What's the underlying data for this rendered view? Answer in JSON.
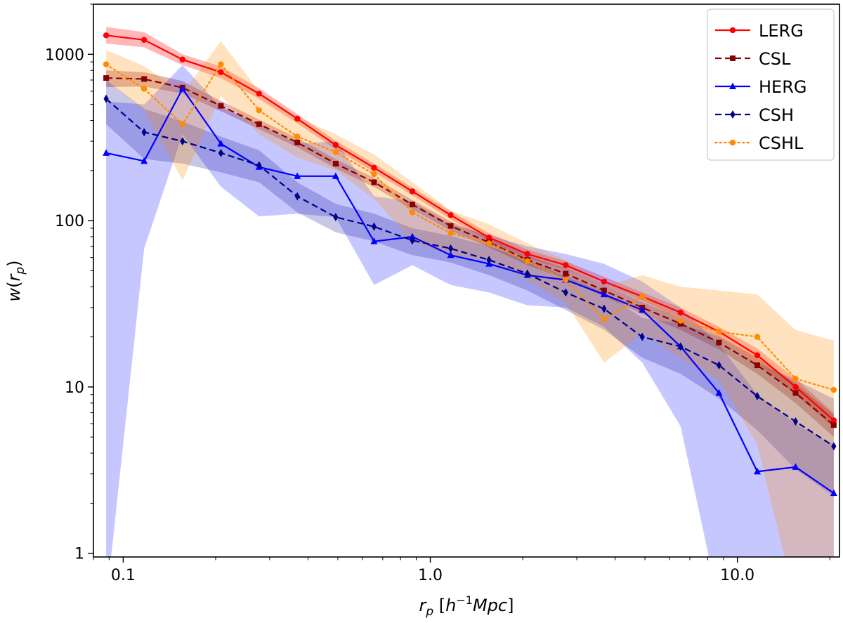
{
  "chart_data": {
    "type": "line",
    "xscale": "log",
    "yscale": "log",
    "xlim": [
      0.08,
      21.5
    ],
    "ylim": [
      0.95,
      2000
    ],
    "xlabel": "r_p [h^{-1}Mpc]",
    "ylabel": "w(r_p)",
    "x_ticks": [
      0.1,
      1.0,
      10.0
    ],
    "x_tick_labels": [
      "0.1",
      "1.0",
      "10.0"
    ],
    "y_ticks": [
      1,
      10,
      100,
      1000
    ],
    "y_tick_labels": [
      "1",
      "10",
      "100",
      "1000"
    ],
    "grid": false,
    "legend_position": "top-right",
    "x": [
      0.088,
      0.117,
      0.156,
      0.208,
      0.277,
      0.369,
      0.492,
      0.656,
      0.874,
      1.165,
      1.553,
      2.07,
      2.76,
      3.68,
      4.9,
      6.53,
      8.71,
      11.61,
      15.47,
      20.6
    ],
    "series": [
      {
        "name": "LERG",
        "color": "#ff0000",
        "linestyle": "solid",
        "marker": "circle",
        "band_opacity": 0.28,
        "values": [
          1300,
          1220,
          930,
          780,
          580,
          410,
          285,
          208,
          150,
          108,
          79,
          63,
          54,
          43,
          35,
          28,
          21.5,
          15.5,
          10,
          6.3
        ],
        "band_lower": [
          1160,
          1100,
          860,
          720,
          540,
          385,
          268,
          196,
          142,
          102,
          75,
          59,
          51,
          41,
          33,
          26,
          20,
          14,
          9,
          5.7
        ],
        "band_upper": [
          1460,
          1360,
          1000,
          845,
          625,
          437,
          302,
          220,
          158,
          114,
          84,
          67,
          57,
          46,
          37,
          30,
          23,
          17,
          11.2,
          7
        ]
      },
      {
        "name": "CSL",
        "color": "#8b0000",
        "linestyle": "dashed",
        "marker": "square",
        "band_opacity": 0.28,
        "values": [
          720,
          710,
          630,
          490,
          380,
          295,
          220,
          170,
          125,
          93,
          74,
          58,
          48,
          38,
          30,
          24,
          18.5,
          13.5,
          9.2,
          5.9
        ],
        "band_lower": [
          635,
          640,
          580,
          455,
          355,
          276,
          206,
          159,
          117,
          87,
          69,
          54,
          44.5,
          35,
          27.5,
          22,
          16.8,
          12,
          8,
          5
        ],
        "band_upper": [
          800,
          780,
          690,
          525,
          405,
          314,
          234,
          181,
          133,
          99,
          79,
          62,
          51.5,
          41,
          32.5,
          26,
          20.2,
          15,
          10.5,
          6.8
        ]
      },
      {
        "name": "HERG",
        "color": "#0000ff",
        "linestyle": "solid",
        "marker": "triangle",
        "band_opacity": 0.22,
        "values": [
          255,
          228,
          620,
          290,
          210,
          185,
          185,
          75,
          80,
          62,
          55,
          47,
          44,
          36,
          29,
          17.5,
          9.2,
          3.1,
          3.3,
          2.3
        ],
        "band_lower": [
          0.5,
          68,
          330,
          160,
          106,
          110,
          105,
          41,
          54,
          41,
          37,
          31,
          30,
          23,
          14,
          5.8,
          0.5,
          0.5,
          0.5,
          0.5
        ],
        "band_upper": [
          520,
          500,
          860,
          480,
          380,
          290,
          300,
          140,
          130,
          95,
          82,
          70,
          63,
          55,
          43,
          30,
          18,
          9,
          6,
          4.5
        ]
      },
      {
        "name": "CSH",
        "color": "#00008b",
        "linestyle": "dashed",
        "marker": "diamond",
        "band_opacity": 0.22,
        "values": [
          540,
          340,
          300,
          255,
          215,
          140,
          105,
          92,
          76,
          68,
          58,
          48,
          37,
          29.5,
          20,
          17.5,
          13.5,
          8.8,
          6.2,
          4.4
        ],
        "band_lower": [
          380,
          235,
          220,
          195,
          170,
          112,
          85,
          75,
          62,
          56,
          47,
          38,
          29,
          22,
          15,
          12,
          8.5,
          5.5,
          3.2,
          2.2
        ],
        "band_upper": [
          700,
          470,
          395,
          320,
          265,
          170,
          126,
          110,
          90,
          81,
          70,
          58,
          46,
          37,
          26,
          24,
          20,
          14,
          11,
          8.5
        ]
      },
      {
        "name": "CSHL",
        "color": "#ff8c00",
        "linestyle": "dotted",
        "marker": "circle",
        "band_opacity": 0.25,
        "values": [
          870,
          620,
          380,
          870,
          460,
          320,
          258,
          190,
          112,
          84,
          73,
          57,
          44,
          25.5,
          35,
          25,
          21.5,
          20,
          11.2,
          9.6
        ],
        "band_lower": [
          700,
          460,
          175,
          560,
          330,
          240,
          200,
          135,
          75,
          62,
          58,
          44,
          32,
          14,
          21,
          15,
          11,
          4.5,
          0.5,
          0.5
        ],
        "band_upper": [
          1060,
          850,
          580,
          1200,
          600,
          420,
          330,
          250,
          170,
          115,
          95,
          73,
          58,
          40,
          47,
          40,
          38,
          36,
          22,
          19
        ]
      }
    ]
  }
}
